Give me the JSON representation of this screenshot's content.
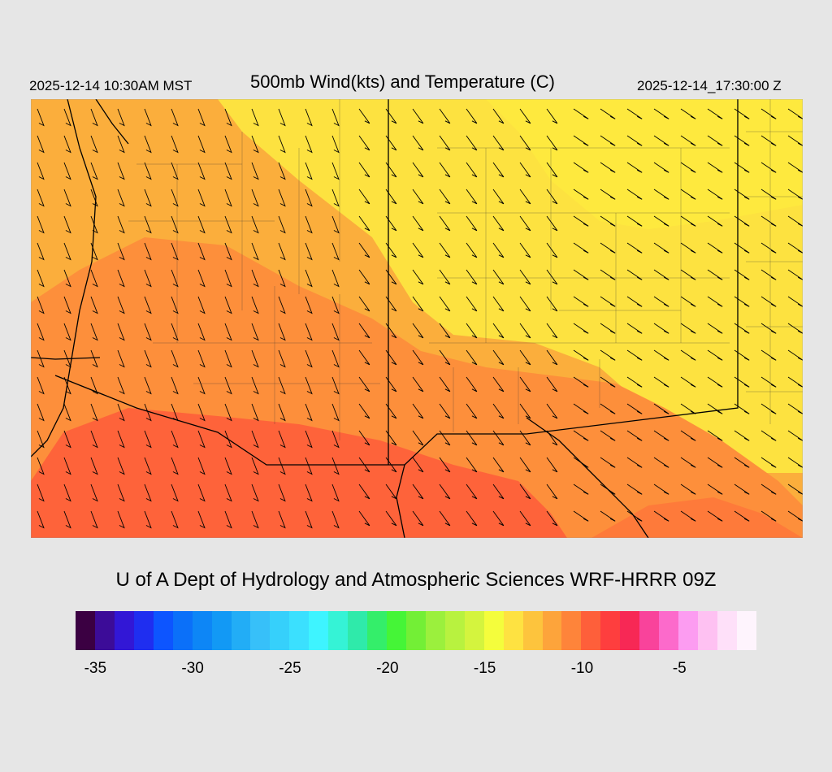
{
  "header": {
    "valid_local": "2025-12-14 10:30AM MST",
    "title": "500mb Wind(kts) and Temperature (C)",
    "valid_utc": "2025-12-14_17:30:00 Z"
  },
  "credit": "U of A Dept of Hydrology and Atmospheric Sciences WRF-HRRR 09Z",
  "colorbar": {
    "colors": [
      "#3b0042",
      "#3c0c98",
      "#3217d6",
      "#1f2ef0",
      "#0d55ff",
      "#0b70f9",
      "#0d86f6",
      "#1299f5",
      "#22adf6",
      "#37c0f9",
      "#36d0fb",
      "#3be0fe",
      "#3ef4ff",
      "#35f3d6",
      "#2feaaa",
      "#34ee6a",
      "#45f537",
      "#73ef36",
      "#9bf03d",
      "#b8f23f",
      "#d4f43e",
      "#f4fd3c",
      "#fee241",
      "#fdc43d",
      "#fda43b",
      "#fe843a",
      "#fe5f3a",
      "#fe3e3e",
      "#f72855",
      "#f9439b",
      "#fc6acb",
      "#fc9cf1",
      "#fec1f2",
      "#fee0f9",
      "#fef4fd"
    ],
    "tick_labels": [
      {
        "text": "-35",
        "frac": 0.029
      },
      {
        "text": "-30",
        "frac": 0.172
      },
      {
        "text": "-25",
        "frac": 0.315
      },
      {
        "text": "-20",
        "frac": 0.458
      },
      {
        "text": "-15",
        "frac": 0.601
      },
      {
        "text": "-10",
        "frac": 0.744
      },
      {
        "text": "-5",
        "frac": 0.887
      }
    ]
  }
}
